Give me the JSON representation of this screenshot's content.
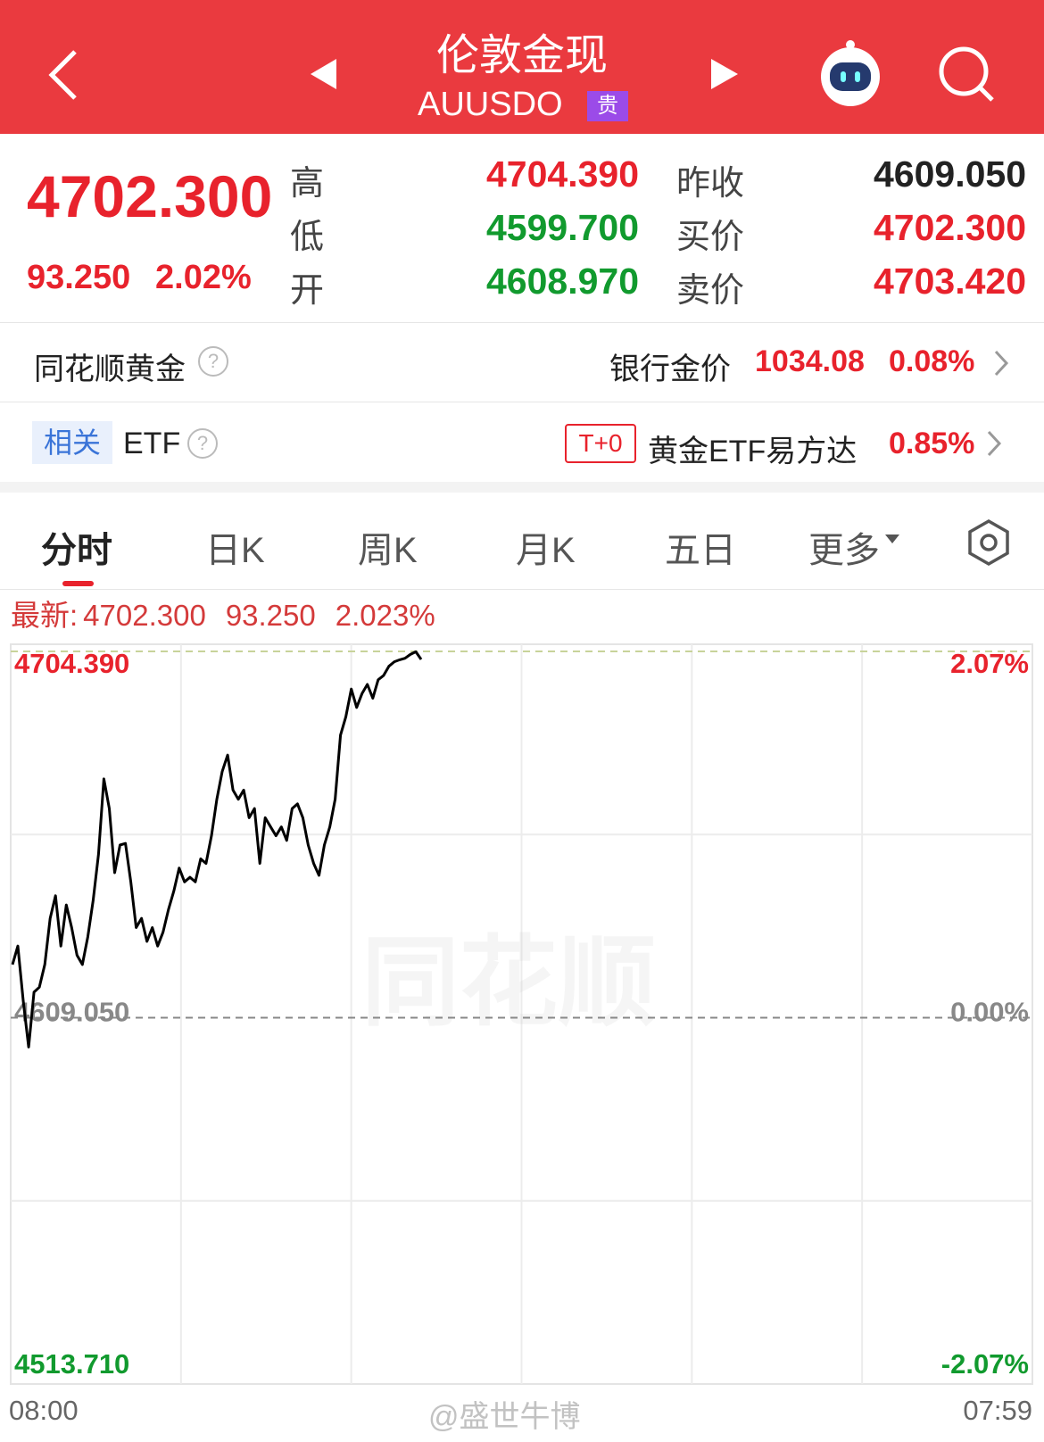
{
  "header": {
    "title": "伦敦金现",
    "code": "AUUSDO",
    "badge": "贵"
  },
  "quote": {
    "price": "4702.300",
    "change": "93.250",
    "change_pct": "2.02%",
    "fields": [
      {
        "label": "高",
        "value": "4704.390"
      },
      {
        "label": "低",
        "value": "4599.700"
      },
      {
        "label": "开",
        "value": "4608.970"
      },
      {
        "label": "昨收",
        "value": "4609.050"
      },
      {
        "label": "买价",
        "value": "4702.300"
      },
      {
        "label": "卖价",
        "value": "4703.420"
      }
    ]
  },
  "gold_row": {
    "name": "同花顺黄金",
    "label": "银行金价",
    "price": "1034.08",
    "pct": "0.08%"
  },
  "etf_row": {
    "tag": "相关",
    "name": "ETF",
    "badge": "T+0",
    "fund": "黄金ETF易方达",
    "pct": "0.85%"
  },
  "tabs": [
    "分时",
    "日K",
    "周K",
    "月K",
    "五日",
    "更多"
  ],
  "chart_data": {
    "type": "line",
    "latest_prefix": "最新:",
    "latest_values": [
      "4702.300",
      "93.250",
      "2.023%"
    ],
    "watermark": "同花顺",
    "series": [
      {
        "color": "#000000",
        "values": [
          4622.9,
          4627.7,
          4613.3,
          4601.4,
          4615.7,
          4617,
          4622.9,
          4634.9,
          4640.8,
          4627.7,
          4638.4,
          4632.5,
          4625.3,
          4622.9,
          4630.1,
          4639.6,
          4651.6,
          4671.2,
          4663.5,
          4646.8,
          4654,
          4654.4,
          4644.4,
          4632.5,
          4634.9,
          4628.9,
          4632.5,
          4627.7,
          4631.3,
          4637.2,
          4642,
          4648,
          4644.4,
          4645.6,
          4644.4,
          4650.4,
          4649.2,
          4656.4,
          4665.9,
          4673.1,
          4677.4,
          4668.3,
          4665.9,
          4668.3,
          4661.1,
          4663.5,
          4649.2,
          4661.1,
          4658.7,
          4656.4,
          4658.7,
          4655.2,
          4663.5,
          4664.7,
          4661.1,
          4654,
          4649.2,
          4646.1,
          4654,
          4658.7,
          4665.9,
          4682.6,
          4687.4,
          4694.6,
          4689.8,
          4693.4,
          4695.8,
          4692.2,
          4697,
          4698.1,
          4700.5,
          4701.7,
          4702.2,
          4702.6,
          4703.6,
          4704.3,
          4702.3
        ]
      }
    ],
    "ylim": [
      4513.71,
      4704.39
    ],
    "yticks": [
      {
        "value": 4704.39,
        "label": "4704.390"
      },
      {
        "value": 4609.05,
        "label": "4609.050"
      },
      {
        "value": 4513.71,
        "label": "4513.710"
      }
    ],
    "y2lim": [
      -2.07,
      2.07
    ],
    "y2ticks": [
      {
        "value": 2.07,
        "label": "2.07%"
      },
      {
        "value": 0,
        "label": "0.00%"
      },
      {
        "value": -2.07,
        "label": "-2.07%"
      }
    ],
    "xticks": [
      "08:00",
      "07:59"
    ]
  },
  "watermark": "@盛世牛博"
}
